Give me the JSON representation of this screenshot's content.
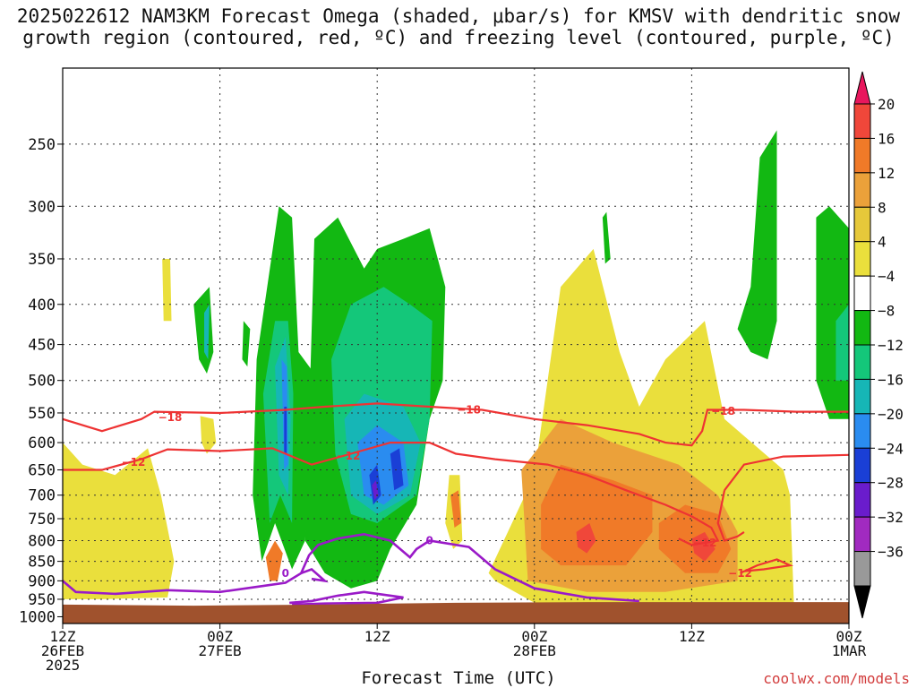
{
  "chart_data": {
    "type": "heatmap",
    "title_line1": "2025022612 NAM3KM Forecast Omega (shaded, μbar/s) for KMSV with dendritic snow",
    "title_line2": "growth region (contoured, red, ºC) and freezing level (contoured, purple, ºC)",
    "xlabel": "Forecast Time (UTC)",
    "credit": "coolwx.com/models",
    "y_ticks": [
      250,
      300,
      350,
      400,
      450,
      500,
      550,
      600,
      650,
      700,
      750,
      800,
      850,
      900,
      950,
      1000
    ],
    "y_range_hpa": [
      200,
      1020
    ],
    "x_ticks": [
      {
        "hour": 0,
        "line1": "12Z",
        "line2": "26FEB",
        "line3": "2025"
      },
      {
        "hour": 12,
        "line1": "00Z",
        "line2": "27FEB",
        "line3": ""
      },
      {
        "hour": 24,
        "line1": "12Z",
        "line2": "",
        "line3": ""
      },
      {
        "hour": 36,
        "line1": "00Z",
        "line2": "28FEB",
        "line3": ""
      },
      {
        "hour": 48,
        "line1": "12Z",
        "line2": "",
        "line3": ""
      },
      {
        "hour": 60,
        "line1": "00Z",
        "line2": "1MAR",
        "line3": ""
      }
    ],
    "x_range_hours": [
      0,
      60
    ],
    "grid": true,
    "colorbar": {
      "labels": [
        "20",
        "16",
        "12",
        "8",
        "4",
        "−4",
        "−8",
        "−12",
        "−16",
        "−20",
        "−24",
        "−28",
        "−32",
        "−36"
      ],
      "colors": [
        "#e8175d",
        "#f0473a",
        "#f07a28",
        "#eba13a",
        "#e6c83a",
        "#eadf3c",
        "#ffffff",
        "#12b812",
        "#14c77a",
        "#16b6b6",
        "#2a8cf0",
        "#1a3fd6",
        "#6a1ccc",
        "#a12ac0",
        "#999999",
        "#000000"
      ]
    },
    "terrain_color": "#a0522d",
    "snow_growth_contours": [
      {
        "label": "−18",
        "color": "#ee3333"
      },
      {
        "label": "−12",
        "color": "#ee3333"
      }
    ],
    "freezing_level_contour": {
      "label": "0",
      "color": "#9a1ac8"
    }
  }
}
